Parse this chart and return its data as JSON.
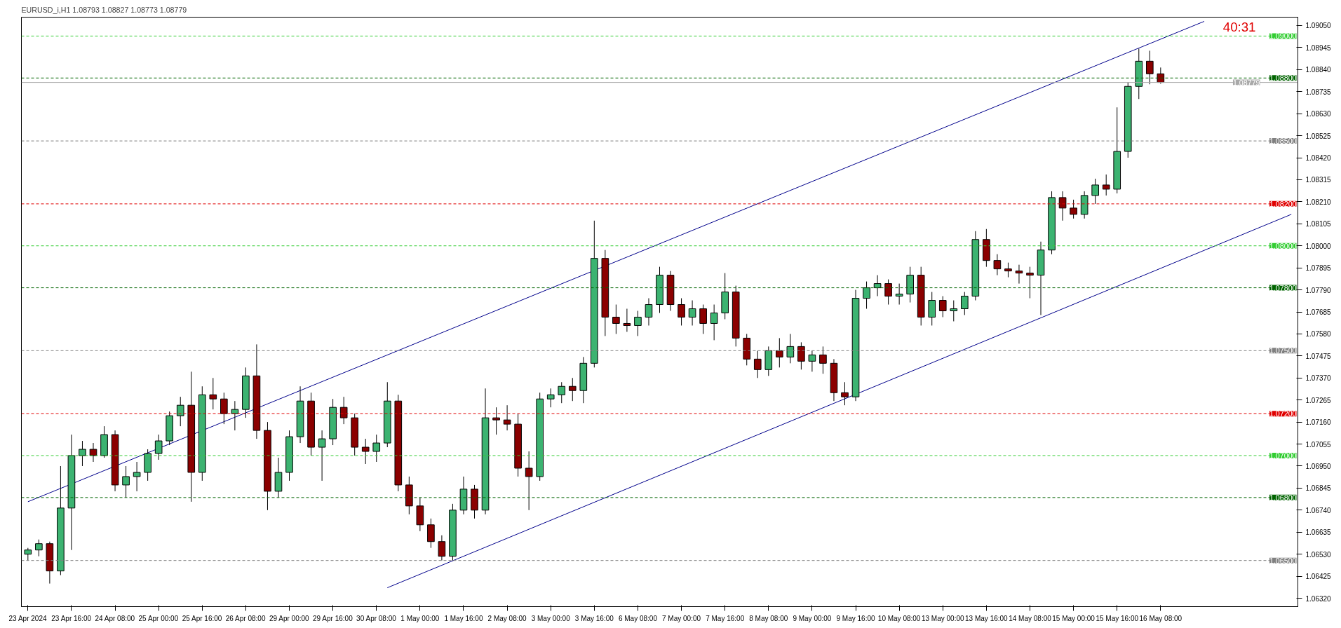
{
  "chart_data": {
    "type": "candlestick",
    "title": "EURUSD_i,H1  1.08793 1.08827 1.08773 1.08779",
    "annotations": [
      "40:31"
    ],
    "ylim": [
      1.0628,
      1.0909
    ],
    "categories": [
      "23 Apr 2024",
      null,
      null,
      null,
      "23 Apr 16:00",
      null,
      null,
      null,
      "24 Apr 08:00",
      null,
      null,
      null,
      "25 Apr 00:00",
      null,
      null,
      null,
      "25 Apr 16:00",
      null,
      null,
      null,
      "26 Apr 08:00",
      null,
      null,
      null,
      "29 Apr 00:00",
      null,
      null,
      null,
      "29 Apr 16:00",
      null,
      null,
      null,
      "30 Apr 08:00",
      null,
      null,
      null,
      "1 May 00:00",
      null,
      null,
      null,
      "1 May 16:00",
      null,
      null,
      null,
      "2 May 08:00",
      null,
      null,
      null,
      "3 May 00:00",
      null,
      null,
      null,
      "3 May 16:00",
      null,
      null,
      null,
      "6 May 08:00",
      null,
      null,
      null,
      "7 May 00:00",
      null,
      null,
      null,
      "7 May 16:00",
      null,
      null,
      null,
      "8 May 08:00",
      null,
      null,
      null,
      "9 May 00:00",
      null,
      null,
      null,
      "9 May 16:00",
      null,
      null,
      null,
      "10 May 08:00",
      null,
      null,
      null,
      "13 May 00:00",
      null,
      null,
      null,
      "13 May 16:00",
      null,
      null,
      null,
      "14 May 08:00",
      null,
      null,
      null,
      "15 May 00:00",
      null,
      null,
      null,
      "15 May 16:00",
      null,
      null,
      null,
      "16 May 08:00",
      null,
      null,
      null,
      null,
      null,
      null,
      null,
      null,
      null,
      null,
      null,
      null
    ],
    "yticks": [
      {
        "value": 1.0632,
        "label": "1.06320"
      },
      {
        "value": 1.06425,
        "label": "1.06425"
      },
      {
        "value": 1.0653,
        "label": "1.06530"
      },
      {
        "value": 1.06635,
        "label": "1.06635"
      },
      {
        "value": 1.0674,
        "label": "1.06740"
      },
      {
        "value": 1.06845,
        "label": "1.06845"
      },
      {
        "value": 1.0695,
        "label": "1.06950"
      },
      {
        "value": 1.07055,
        "label": "1.07055"
      },
      {
        "value": 1.0716,
        "label": "1.07160"
      },
      {
        "value": 1.07265,
        "label": "1.07265"
      },
      {
        "value": 1.0737,
        "label": "1.07370"
      },
      {
        "value": 1.07475,
        "label": "1.07475"
      },
      {
        "value": 1.0758,
        "label": "1.07580"
      },
      {
        "value": 1.07685,
        "label": "1.07685"
      },
      {
        "value": 1.0779,
        "label": "1.07790"
      },
      {
        "value": 1.07895,
        "label": "1.07895"
      },
      {
        "value": 1.08,
        "label": "1.08000"
      },
      {
        "value": 1.08105,
        "label": "1.08105"
      },
      {
        "value": 1.0821,
        "label": "1.08210"
      },
      {
        "value": 1.08315,
        "label": "1.08315"
      },
      {
        "value": 1.0842,
        "label": "1.08420"
      },
      {
        "value": 1.08525,
        "label": "1.08525"
      },
      {
        "value": 1.0863,
        "label": "1.08630"
      },
      {
        "value": 1.08735,
        "label": "1.08735"
      },
      {
        "value": 1.0884,
        "label": "1.08840"
      },
      {
        "value": 1.08945,
        "label": "1.08945"
      },
      {
        "value": 1.0905,
        "label": "1.09050"
      }
    ],
    "grid": false,
    "ref_lines": [
      {
        "axis": "y",
        "value": 1.09,
        "label": "1.09000",
        "color": "#32cd32",
        "line_style": "dashed"
      },
      {
        "axis": "y",
        "value": 1.088,
        "label": "1.08800",
        "color": "#006400",
        "line_style": "dashed"
      },
      {
        "axis": "y",
        "value": 1.08779,
        "label": "1.08779",
        "color": "#a9a9a9",
        "line_style": "solid"
      },
      {
        "axis": "y",
        "value": 1.085,
        "label": "1.08500",
        "color": "#808080",
        "line_style": "dashed"
      },
      {
        "axis": "y",
        "value": 1.082,
        "label": "1.08200",
        "color": "#e00000",
        "line_style": "dashed"
      },
      {
        "axis": "y",
        "value": 1.08,
        "label": "1.08000",
        "color": "#32cd32",
        "line_style": "dashed"
      },
      {
        "axis": "y",
        "value": 1.078,
        "label": "1.07800",
        "color": "#006400",
        "line_style": "dashed"
      },
      {
        "axis": "y",
        "value": 1.075,
        "label": "1.07500",
        "color": "#808080",
        "line_style": "dashed"
      },
      {
        "axis": "y",
        "value": 1.072,
        "label": "1.07200",
        "color": "#e00000",
        "line_style": "dashed"
      },
      {
        "axis": "y",
        "value": 1.07,
        "label": "1.07000",
        "color": "#32cd32",
        "line_style": "dashed"
      },
      {
        "axis": "y",
        "value": 1.068,
        "label": "1.06800",
        "color": "#006400",
        "line_style": "dashed"
      },
      {
        "axis": "y",
        "value": 1.065,
        "label": "1.06500",
        "color": "#808080",
        "line_style": "dashed"
      }
    ],
    "series": [
      {
        "ohlc": [
          [
            1.0653,
            1.0656,
            1.065,
            1.0655
          ],
          [
            1.0655,
            1.066,
            1.0652,
            1.0658
          ],
          [
            1.0658,
            1.0659,
            1.0639,
            1.0645
          ],
          [
            1.0645,
            1.0695,
            1.0643,
            1.0675
          ],
          [
            1.0675,
            1.071,
            1.0655,
            1.07
          ],
          [
            1.07,
            1.0707,
            1.0695,
            1.0703
          ],
          [
            1.0703,
            1.0706,
            1.0697,
            1.07
          ],
          [
            1.07,
            1.0714,
            1.0699,
            1.071
          ],
          [
            1.071,
            1.0712,
            1.0683,
            1.0686
          ],
          [
            1.0686,
            1.0695,
            1.068,
            1.069
          ],
          [
            1.069,
            1.0697,
            1.0683,
            1.0692
          ],
          [
            1.0692,
            1.0703,
            1.0688,
            1.0701
          ],
          [
            1.0701,
            1.071,
            1.0698,
            1.0707
          ],
          [
            1.0707,
            1.0721,
            1.0705,
            1.0719
          ],
          [
            1.0719,
            1.0728,
            1.0714,
            1.0724
          ],
          [
            1.0724,
            1.074,
            1.0678,
            1.0692
          ],
          [
            1.0692,
            1.0733,
            1.0688,
            1.0729
          ],
          [
            1.0729,
            1.0737,
            1.0722,
            1.0727
          ],
          [
            1.0727,
            1.073,
            1.0715,
            1.072
          ],
          [
            1.072,
            1.0726,
            1.0712,
            1.0722
          ],
          [
            1.0722,
            1.0742,
            1.0718,
            1.0738
          ],
          [
            1.0738,
            1.0753,
            1.0708,
            1.0712
          ],
          [
            1.0712,
            1.0716,
            1.0674,
            1.0683
          ],
          [
            1.0683,
            1.0699,
            1.068,
            1.0692
          ],
          [
            1.0692,
            1.0712,
            1.0688,
            1.0709
          ],
          [
            1.0709,
            1.0733,
            1.0706,
            1.0726
          ],
          [
            1.0726,
            1.073,
            1.07,
            1.0704
          ],
          [
            1.0704,
            1.0712,
            1.0688,
            1.0708
          ],
          [
            1.0708,
            1.0727,
            1.0705,
            1.0723
          ],
          [
            1.0723,
            1.0728,
            1.0715,
            1.0718
          ],
          [
            1.0718,
            1.072,
            1.07,
            1.0704
          ],
          [
            1.0704,
            1.0708,
            1.0696,
            1.0702
          ],
          [
            1.0702,
            1.071,
            1.0697,
            1.0706
          ],
          [
            1.0706,
            1.0735,
            1.0704,
            1.0726
          ],
          [
            1.0726,
            1.0729,
            1.0683,
            1.0686
          ],
          [
            1.0686,
            1.069,
            1.0672,
            1.0676
          ],
          [
            1.0676,
            1.068,
            1.0664,
            1.0667
          ],
          [
            1.0667,
            1.067,
            1.0656,
            1.0659
          ],
          [
            1.0659,
            1.0662,
            1.065,
            1.0652
          ],
          [
            1.0652,
            1.0677,
            1.065,
            1.0674
          ],
          [
            1.0674,
            1.069,
            1.0672,
            1.0684
          ],
          [
            1.0684,
            1.0686,
            1.067,
            1.0674
          ],
          [
            1.0674,
            1.0732,
            1.0672,
            1.0718
          ],
          [
            1.0718,
            1.0723,
            1.071,
            1.0717
          ],
          [
            1.0717,
            1.0724,
            1.0712,
            1.0715
          ],
          [
            1.0715,
            1.072,
            1.069,
            1.0694
          ],
          [
            1.0694,
            1.0702,
            1.0674,
            1.069
          ],
          [
            1.069,
            1.073,
            1.0688,
            1.0727
          ],
          [
            1.0727,
            1.0732,
            1.0723,
            1.0729
          ],
          [
            1.0729,
            1.0735,
            1.0725,
            1.0733
          ],
          [
            1.0733,
            1.0737,
            1.0726,
            1.0731
          ],
          [
            1.0731,
            1.0747,
            1.0725,
            1.0744
          ],
          [
            1.0744,
            1.0812,
            1.0742,
            1.0794
          ],
          [
            1.0794,
            1.0798,
            1.0757,
            1.0766
          ],
          [
            1.0766,
            1.0772,
            1.0758,
            1.0763
          ],
          [
            1.0763,
            1.077,
            1.0759,
            1.0762
          ],
          [
            1.0762,
            1.0769,
            1.0757,
            1.0766
          ],
          [
            1.0766,
            1.0775,
            1.0762,
            1.0772
          ],
          [
            1.0772,
            1.079,
            1.0768,
            1.0786
          ],
          [
            1.0786,
            1.0788,
            1.0769,
            1.0772
          ],
          [
            1.0772,
            1.0775,
            1.0762,
            1.0766
          ],
          [
            1.0766,
            1.0774,
            1.0762,
            1.077
          ],
          [
            1.077,
            1.0772,
            1.0758,
            1.0763
          ],
          [
            1.0763,
            1.0772,
            1.0755,
            1.0768
          ],
          [
            1.0768,
            1.0787,
            1.0765,
            1.0778
          ],
          [
            1.0778,
            1.0781,
            1.0752,
            1.0756
          ],
          [
            1.0756,
            1.0758,
            1.0743,
            1.0746
          ],
          [
            1.0746,
            1.075,
            1.0737,
            1.0741
          ],
          [
            1.0741,
            1.0752,
            1.0738,
            1.075
          ],
          [
            1.075,
            1.0756,
            1.0742,
            1.0747
          ],
          [
            1.0747,
            1.0758,
            1.0744,
            1.0752
          ],
          [
            1.0752,
            1.0754,
            1.0741,
            1.0745
          ],
          [
            1.0745,
            1.075,
            1.074,
            1.0748
          ],
          [
            1.0748,
            1.0752,
            1.0739,
            1.0744
          ],
          [
            1.0744,
            1.0746,
            1.0726,
            1.073
          ],
          [
            1.073,
            1.0735,
            1.0724,
            1.0728
          ],
          [
            1.0728,
            1.0779,
            1.0726,
            1.0775
          ],
          [
            1.0775,
            1.0783,
            1.077,
            1.078
          ],
          [
            1.078,
            1.0786,
            1.0776,
            1.0782
          ],
          [
            1.0782,
            1.0784,
            1.0772,
            1.0776
          ],
          [
            1.0776,
            1.0782,
            1.0772,
            1.0777
          ],
          [
            1.0777,
            1.079,
            1.0773,
            1.0786
          ],
          [
            1.0786,
            1.079,
            1.0762,
            1.0766
          ],
          [
            1.0766,
            1.0778,
            1.0762,
            1.0774
          ],
          [
            1.0774,
            1.0776,
            1.0766,
            1.0769
          ],
          [
            1.0769,
            1.0774,
            1.0764,
            1.077
          ],
          [
            1.077,
            1.0778,
            1.0767,
            1.0776
          ],
          [
            1.0776,
            1.0807,
            1.0774,
            1.0803
          ],
          [
            1.0803,
            1.0808,
            1.079,
            1.0793
          ],
          [
            1.0793,
            1.0796,
            1.0786,
            1.0789
          ],
          [
            1.0789,
            1.0792,
            1.0785,
            1.0788
          ],
          [
            1.0788,
            1.0791,
            1.0782,
            1.0787
          ],
          [
            1.0787,
            1.079,
            1.0775,
            1.0786
          ],
          [
            1.0786,
            1.0802,
            1.0767,
            1.0798
          ],
          [
            1.0798,
            1.0826,
            1.0796,
            1.0823
          ],
          [
            1.0823,
            1.0826,
            1.0812,
            1.0818
          ],
          [
            1.0818,
            1.0822,
            1.0813,
            1.0815
          ],
          [
            1.0815,
            1.0826,
            1.0813,
            1.0824
          ],
          [
            1.0824,
            1.0832,
            1.082,
            1.0829
          ],
          [
            1.0829,
            1.0834,
            1.0824,
            1.0827
          ],
          [
            1.0827,
            1.0866,
            1.0825,
            1.0845
          ],
          [
            1.0845,
            1.0878,
            1.0842,
            1.0876
          ],
          [
            1.0876,
            1.0894,
            1.087,
            1.0888
          ],
          [
            1.0888,
            1.0893,
            1.0877,
            1.0882
          ],
          [
            1.0882,
            1.0885,
            1.08773,
            1.08779
          ],
          null,
          null,
          null,
          null,
          null,
          null,
          null,
          null,
          null,
          null,
          null,
          null
        ],
        "colors": [
          "#3cb371",
          "#3cb371",
          "#8b0000",
          "#3cb371",
          "#3cb371",
          "#3cb371",
          "#8b0000",
          "#3cb371",
          "#8b0000",
          "#3cb371",
          "#3cb371",
          "#3cb371",
          "#3cb371",
          "#3cb371",
          "#3cb371",
          "#8b0000",
          "#3cb371",
          "#8b0000",
          "#8b0000",
          "#3cb371",
          "#3cb371",
          "#8b0000",
          "#8b0000",
          "#3cb371",
          "#3cb371",
          "#3cb371",
          "#8b0000",
          "#3cb371",
          "#3cb371",
          "#8b0000",
          "#8b0000",
          "#8b0000",
          "#3cb371",
          "#3cb371",
          "#8b0000",
          "#8b0000",
          "#8b0000",
          "#8b0000",
          "#8b0000",
          "#3cb371",
          "#3cb371",
          "#8b0000",
          "#3cb371",
          "#8b0000",
          "#8b0000",
          "#8b0000",
          "#8b0000",
          "#3cb371",
          "#3cb371",
          "#3cb371",
          "#8b0000",
          "#3cb371",
          "#3cb371",
          "#8b0000",
          "#8b0000",
          "#8b0000",
          "#3cb371",
          "#3cb371",
          "#3cb371",
          "#8b0000",
          "#8b0000",
          "#3cb371",
          "#8b0000",
          "#3cb371",
          "#3cb371",
          "#8b0000",
          "#8b0000",
          "#8b0000",
          "#3cb371",
          "#8b0000",
          "#3cb371",
          "#8b0000",
          "#3cb371",
          "#8b0000",
          "#8b0000",
          "#8b0000",
          "#3cb371",
          "#3cb371",
          "#3cb371",
          "#8b0000",
          "#3cb371",
          "#3cb371",
          "#8b0000",
          "#3cb371",
          "#8b0000",
          "#3cb371",
          "#3cb371",
          "#3cb371",
          "#8b0000",
          "#8b0000",
          "#8b0000",
          "#8b0000",
          "#8b0000",
          "#3cb371",
          "#3cb371",
          "#8b0000",
          "#8b0000",
          "#3cb371",
          "#3cb371",
          "#8b0000",
          "#3cb371",
          "#3cb371",
          "#3cb371",
          "#8b0000",
          "#8b0000",
          null,
          null,
          null,
          null,
          null,
          null,
          null,
          null,
          null,
          null,
          null,
          null
        ]
      },
      {
        "type": "line",
        "color": "#00008b",
        "values": [
          1.0678,
          null,
          null,
          null,
          null,
          null,
          null,
          null,
          null,
          null,
          null,
          null,
          null,
          null,
          null,
          null,
          null,
          null,
          null,
          null,
          null,
          null,
          null,
          null,
          null,
          null,
          null,
          null,
          null,
          null,
          null,
          null,
          null,
          null,
          null,
          null,
          null,
          null,
          null,
          null,
          null,
          null,
          null,
          null,
          null,
          null,
          null,
          null,
          null,
          null,
          null,
          null,
          null,
          null,
          null,
          null,
          null,
          null,
          null,
          null,
          null,
          null,
          null,
          null,
          null,
          null,
          null,
          null,
          null,
          null,
          null,
          null,
          null,
          null,
          null,
          null,
          null,
          null,
          null,
          null,
          null,
          null,
          null,
          null,
          null,
          null,
          null,
          null,
          null,
          null,
          null,
          null,
          null,
          null,
          null,
          null,
          null,
          null,
          null,
          null,
          null,
          null,
          null,
          null,
          null,
          null,
          null,
          null,
          1.0907,
          null,
          null,
          null,
          null,
          null,
          null,
          null,
          null
        ]
      },
      {
        "type": "line",
        "color": "#00008b",
        "values": [
          null,
          null,
          null,
          null,
          null,
          null,
          null,
          null,
          null,
          null,
          null,
          null,
          null,
          null,
          null,
          null,
          null,
          null,
          null,
          null,
          null,
          null,
          null,
          null,
          null,
          null,
          null,
          null,
          null,
          null,
          null,
          null,
          null,
          1.0637,
          null,
          null,
          null,
          null,
          null,
          null,
          null,
          null,
          null,
          null,
          null,
          null,
          null,
          null,
          null,
          null,
          null,
          null,
          null,
          null,
          null,
          null,
          null,
          null,
          null,
          null,
          null,
          null,
          null,
          null,
          null,
          null,
          null,
          null,
          null,
          null,
          null,
          null,
          null,
          null,
          null,
          null,
          null,
          null,
          null,
          null,
          null,
          null,
          null,
          null,
          null,
          null,
          null,
          null,
          null,
          null,
          null,
          null,
          null,
          null,
          null,
          null,
          null,
          null,
          null,
          null,
          null,
          null,
          null,
          null,
          null,
          null,
          null,
          null,
          null,
          null,
          null,
          null,
          null,
          null,
          null,
          null,
          1.0815
        ]
      }
    ]
  }
}
